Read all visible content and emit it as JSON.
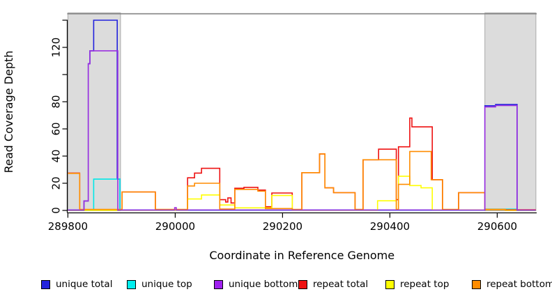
{
  "figure": {
    "x_axis_label": "Coordinate in Reference Genome",
    "y_axis_label": "Read Coverage Depth"
  },
  "legend": {
    "items": [
      {
        "label": "unique total",
        "color": "#2222dd"
      },
      {
        "label": "unique top",
        "color": "#00eeee"
      },
      {
        "label": "unique bottom",
        "color": "#a020f0"
      },
      {
        "label": "repeat total",
        "color": "#ee1111"
      },
      {
        "label": "repeat top",
        "color": "#ffff00"
      },
      {
        "label": "repeat bottom",
        "color": "#ff8c00"
      }
    ]
  },
  "chart_data": {
    "type": "line",
    "subtype": "step-coverage",
    "title": "",
    "xlabel": "Coordinate in Reference Genome",
    "ylabel": "Read Coverage Depth",
    "x_range": [
      289800,
      290672
    ],
    "ylim": [
      0,
      145
    ],
    "x_ticks": [
      289800,
      290000,
      290200,
      290400,
      290600
    ],
    "y_ticks": [
      {
        "value": 0,
        "label": "0"
      },
      {
        "value": 20,
        "label": "20"
      },
      {
        "value": 40,
        "label": "40"
      },
      {
        "value": 60,
        "label": "60"
      },
      {
        "value": 80,
        "label": "80"
      },
      {
        "value": 100,
        "label": ""
      },
      {
        "value": 120,
        "label": "120"
      },
      {
        "value": 140,
        "label": ""
      }
    ],
    "grid": false,
    "legend_position": "bottom",
    "shaded_regions": [
      {
        "start": 289800,
        "end": 289898,
        "fill": "#dcdcdc",
        "border": "#a8a8a8"
      },
      {
        "start": 290577,
        "end": 290672,
        "fill": "#dcdcdc",
        "border": "#a8a8a8"
      }
    ],
    "top_boundary": {
      "value": 145,
      "color": "#8c8c8c"
    },
    "series": [
      {
        "name": "unique total",
        "color": "#2222dd",
        "points": [
          [
            289800,
            0.3
          ],
          [
            289830,
            7
          ],
          [
            289838,
            108
          ],
          [
            289841,
            117.5
          ],
          [
            289848,
            140
          ],
          [
            289892,
            23
          ],
          [
            289897,
            0.3
          ],
          [
            290577,
            77
          ],
          [
            290597,
            78
          ],
          [
            290637,
            0.3
          ],
          [
            290672,
            0.3
          ]
        ]
      },
      {
        "name": "unique top",
        "color": "#00e8e8",
        "points": [
          [
            289800,
            0.1
          ],
          [
            289848,
            23
          ],
          [
            289897,
            0.1
          ],
          [
            290577,
            0.9
          ],
          [
            290637,
            0.1
          ],
          [
            290672,
            0.1
          ]
        ]
      },
      {
        "name": "repeat total",
        "color": "#ee1111",
        "points": [
          [
            289800,
            27.5
          ],
          [
            289822,
            0.5
          ],
          [
            289901,
            13.6
          ],
          [
            289963,
            0.5
          ],
          [
            290023,
            24
          ],
          [
            290036,
            27.5
          ],
          [
            290049,
            31
          ],
          [
            290083,
            7.9
          ],
          [
            290094,
            6.2
          ],
          [
            290098,
            9.2
          ],
          [
            290104,
            5.5
          ],
          [
            290111,
            16.3
          ],
          [
            290128,
            17
          ],
          [
            290154,
            15
          ],
          [
            290168,
            2.7
          ],
          [
            290180,
            12.8
          ],
          [
            290218,
            0.5
          ],
          [
            290236,
            27.8
          ],
          [
            290269,
            41.6
          ],
          [
            290279,
            16.6
          ],
          [
            290295,
            13.1
          ],
          [
            290335,
            0.5
          ],
          [
            290350,
            37.3
          ],
          [
            290379,
            45.1
          ],
          [
            290412,
            7.9
          ],
          [
            290416,
            46.8
          ],
          [
            290437,
            68
          ],
          [
            290441,
            61.5
          ],
          [
            290479,
            22.6
          ],
          [
            290498,
            0.5
          ],
          [
            290528,
            13.1
          ],
          [
            290577,
            0.5
          ],
          [
            290672,
            0.5
          ]
        ]
      },
      {
        "name": "repeat top",
        "color": "#ffff00",
        "points": [
          [
            289800,
            0.1
          ],
          [
            290023,
            8.4
          ],
          [
            290049,
            11.4
          ],
          [
            290083,
            4
          ],
          [
            290111,
            1.9
          ],
          [
            290180,
            11
          ],
          [
            290218,
            0.1
          ],
          [
            290377,
            7.1
          ],
          [
            290412,
            0.4
          ],
          [
            290416,
            25.2
          ],
          [
            290437,
            18.3
          ],
          [
            290458,
            16.6
          ],
          [
            290479,
            0.3
          ],
          [
            290577,
            0.6
          ],
          [
            290615,
            0.1
          ],
          [
            290672,
            0.1
          ]
        ]
      },
      {
        "name": "repeat bottom",
        "color": "#ff8c00",
        "points": [
          [
            289800,
            27.3
          ],
          [
            289822,
            0.7
          ],
          [
            289901,
            13.6
          ],
          [
            289963,
            0.7
          ],
          [
            290023,
            18
          ],
          [
            290036,
            20
          ],
          [
            290083,
            1
          ],
          [
            290111,
            15.5
          ],
          [
            290154,
            14.2
          ],
          [
            290168,
            1.4
          ],
          [
            290218,
            0.7
          ],
          [
            290236,
            27.8
          ],
          [
            290269,
            41.6
          ],
          [
            290279,
            16.6
          ],
          [
            290295,
            13.1
          ],
          [
            290335,
            0.7
          ],
          [
            290350,
            37.3
          ],
          [
            290412,
            0.7
          ],
          [
            290416,
            19.2
          ],
          [
            290437,
            43.4
          ],
          [
            290477,
            22.6
          ],
          [
            290498,
            0.7
          ],
          [
            290528,
            13.1
          ],
          [
            290577,
            0.8
          ],
          [
            290615,
            0.3
          ],
          [
            290672,
            0.3
          ]
        ]
      },
      {
        "name": "unique bottom",
        "color": "#9b30e0",
        "points": [
          [
            289800,
            0.2
          ],
          [
            289830,
            7
          ],
          [
            289838,
            108
          ],
          [
            289841,
            117.5
          ],
          [
            289893,
            0.2
          ],
          [
            289999,
            2
          ],
          [
            290002,
            0.2
          ],
          [
            290577,
            76.2
          ],
          [
            290597,
            77.2
          ],
          [
            290637,
            0.2
          ],
          [
            290672,
            0.2
          ]
        ]
      }
    ]
  }
}
